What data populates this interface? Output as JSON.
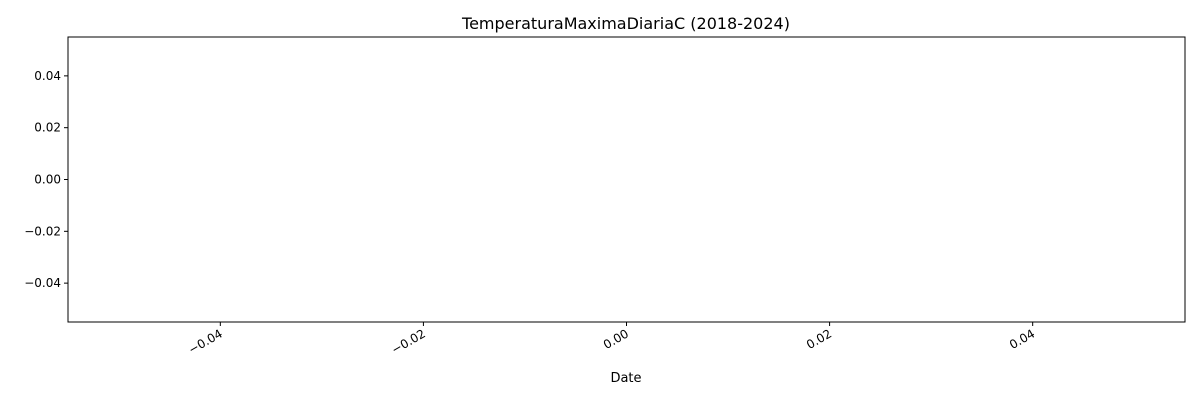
{
  "chart_data": {
    "type": "line",
    "title": "TemperaturaMaximaDiariaC (2018-2024)",
    "xlabel": "Date",
    "ylabel": "",
    "series": [],
    "xlim": [
      -0.055,
      0.055
    ],
    "ylim": [
      -0.055,
      0.055
    ],
    "xticks": [
      -0.04,
      -0.02,
      0.0,
      0.02,
      0.04
    ],
    "yticks": [
      -0.04,
      -0.02,
      0.0,
      0.02,
      0.04
    ],
    "xtick_labels": [
      "−0.04",
      "−0.02",
      "0.00",
      "0.02",
      "0.04"
    ],
    "ytick_labels": [
      "−0.04",
      "−0.02",
      "0.00",
      "0.02",
      "0.04"
    ],
    "grid": false,
    "legend": "none"
  }
}
